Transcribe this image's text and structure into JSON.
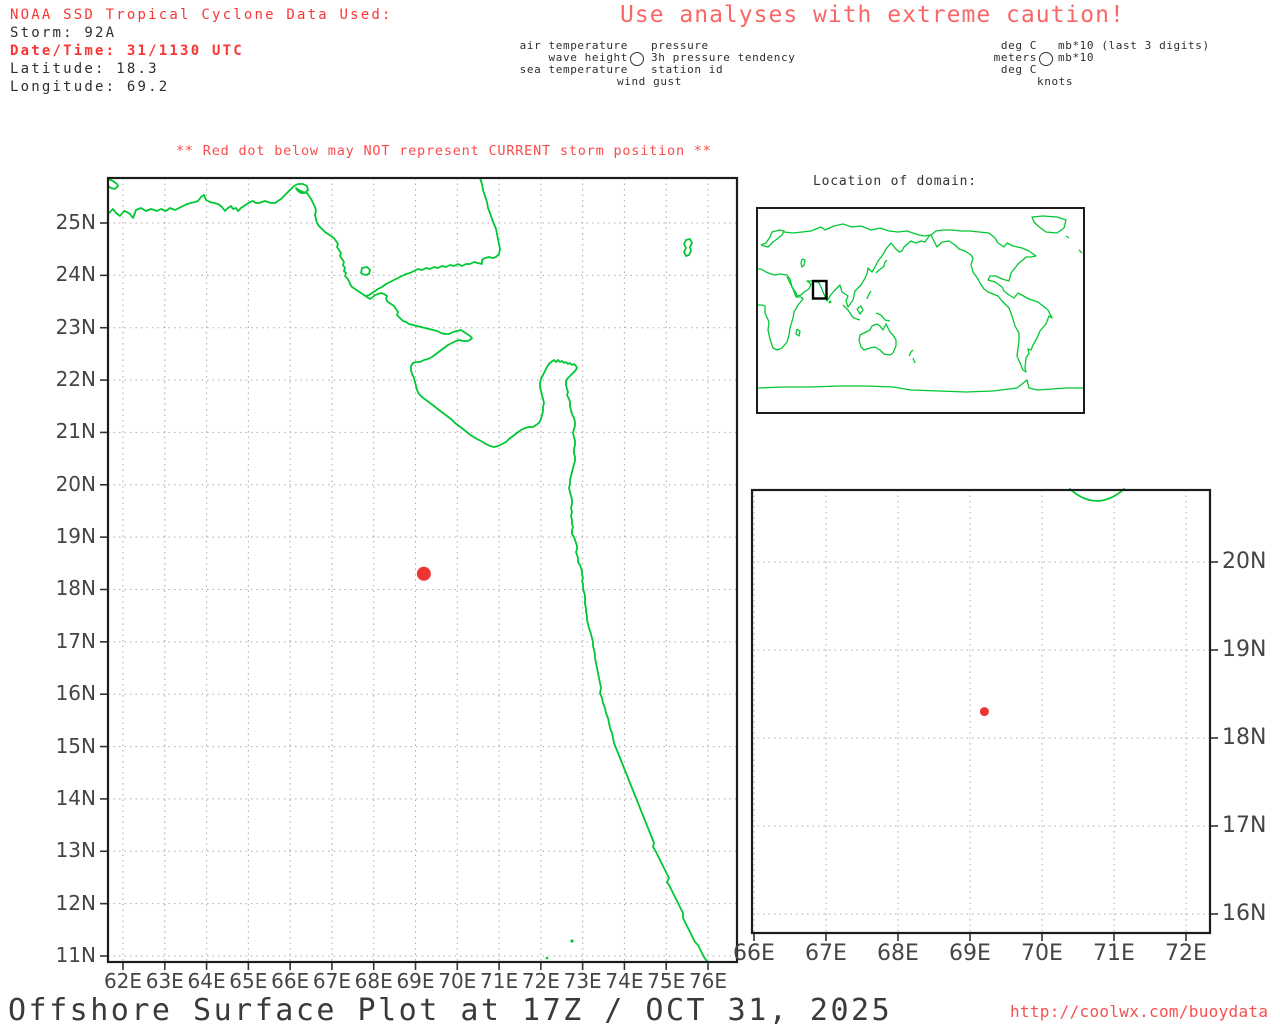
{
  "header": {
    "info_title": "NOAA SSD Tropical Cyclone Data Used:",
    "storm": "Storm: 92A",
    "datetime": "Date/Time: 31/1130 UTC",
    "latitude": "Latitude: 18.3",
    "longitude": "Longitude: 69.2",
    "caution": "Use analyses with extreme caution!"
  },
  "station_legend": {
    "left": [
      "air temperature",
      "wave height",
      "sea temperature"
    ],
    "right": [
      "pressure",
      "3h pressure tendency",
      "station id"
    ],
    "bottom": "wind gust"
  },
  "units_legend": {
    "left": [
      "deg C",
      "meters",
      "deg C"
    ],
    "right": [
      "mb*10 (last 3 digits)",
      "mb*10"
    ],
    "bottom": "knots"
  },
  "warning": "** Red dot below may NOT represent CURRENT storm position **",
  "domain_inset": {
    "title": "Location of domain:"
  },
  "storm_position": {
    "lat": 18.3,
    "lon": 69.2
  },
  "footer": {
    "title": "Offshore Surface Plot at 17Z / OCT 31, 2025",
    "url": "http://coolwx.com/buoydata"
  },
  "colors": {
    "coastline_green": "#00c832",
    "storm_dot_red": "#ee3333",
    "alert_red": "#f93636",
    "caution_salmon": "#fa6666"
  },
  "chart_data": [
    {
      "id": "main_map",
      "type": "map",
      "region": "Arabian Sea / western India",
      "lon_ticks": [
        "62E",
        "63E",
        "64E",
        "65E",
        "66E",
        "67E",
        "68E",
        "69E",
        "70E",
        "71E",
        "72E",
        "73E",
        "74E",
        "75E",
        "76E"
      ],
      "lat_ticks": [
        "25N",
        "24N",
        "23N",
        "22N",
        "21N",
        "20N",
        "19N",
        "18N",
        "17N",
        "16N",
        "15N",
        "14N",
        "13N",
        "12N",
        "11N"
      ],
      "grid_interval_deg": 1,
      "storm_dot": {
        "lon": 69.2,
        "lat": 18.3
      }
    },
    {
      "id": "zoom_map",
      "type": "map",
      "region": "storm close-up",
      "lon_ticks": [
        "66E",
        "67E",
        "68E",
        "69E",
        "70E",
        "71E",
        "72E"
      ],
      "lat_ticks": [
        "20N",
        "19N",
        "18N",
        "17N",
        "16N"
      ],
      "grid_interval_deg": 1,
      "storm_dot": {
        "lon": 69.2,
        "lat": 18.3
      }
    },
    {
      "id": "world_inset",
      "type": "map",
      "region": "world overview",
      "domain_box": "main map domain"
    }
  ]
}
